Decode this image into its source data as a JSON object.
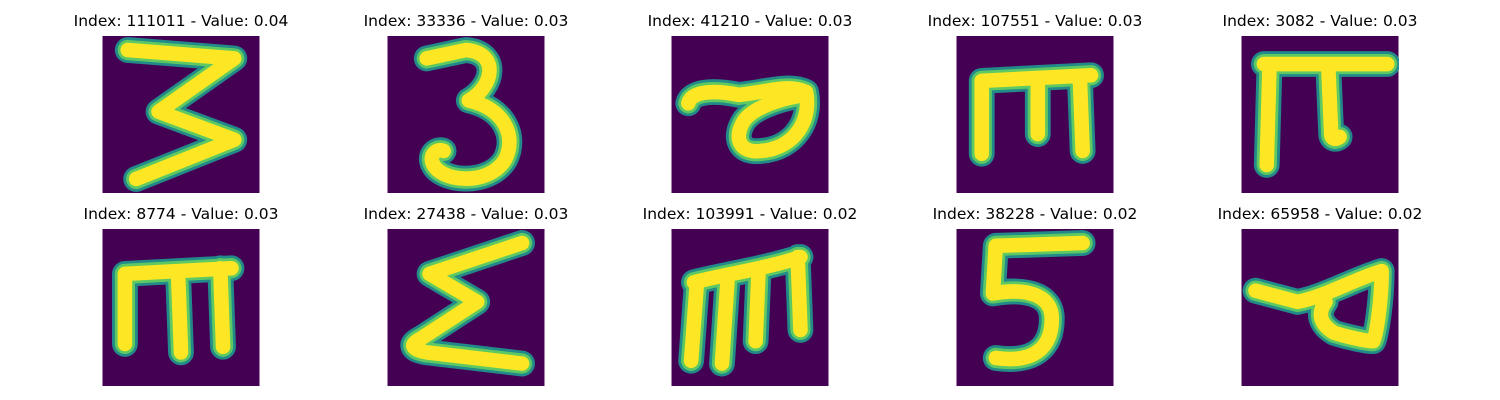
{
  "colors": {
    "background": "#440154",
    "stroke_outer": "#21918c",
    "stroke_mid": "#5ec962",
    "stroke_core": "#fde725"
  },
  "panels": [
    {
      "title": "Index: 111011 - Value: 0.04",
      "index": 111011,
      "value": 0.04,
      "glyph": "3"
    },
    {
      "title": "Index: 33336 - Value: 0.03",
      "index": 33336,
      "value": 0.03,
      "glyph": "3"
    },
    {
      "title": "Index: 41210 - Value: 0.03",
      "index": 41210,
      "value": 0.03,
      "glyph": "loop"
    },
    {
      "title": "Index: 107551 - Value: 0.03",
      "index": 107551,
      "value": 0.03,
      "glyph": "m"
    },
    {
      "title": "Index: 3082 - Value: 0.03",
      "index": 3082,
      "value": 0.03,
      "glyph": "pi"
    },
    {
      "title": "Index: 8774 - Value: 0.03",
      "index": 8774,
      "value": 0.03,
      "glyph": "m"
    },
    {
      "title": "Index: 27438 - Value: 0.03",
      "index": 27438,
      "value": 0.03,
      "glyph": "sigma"
    },
    {
      "title": "Index: 103991 - Value: 0.02",
      "index": 103991,
      "value": 0.02,
      "glyph": "m"
    },
    {
      "title": "Index: 38228 - Value: 0.02",
      "index": 38228,
      "value": 0.02,
      "glyph": "5"
    },
    {
      "title": "Index: 65958 - Value: 0.02",
      "index": 65958,
      "value": 0.02,
      "glyph": "loop"
    }
  ]
}
